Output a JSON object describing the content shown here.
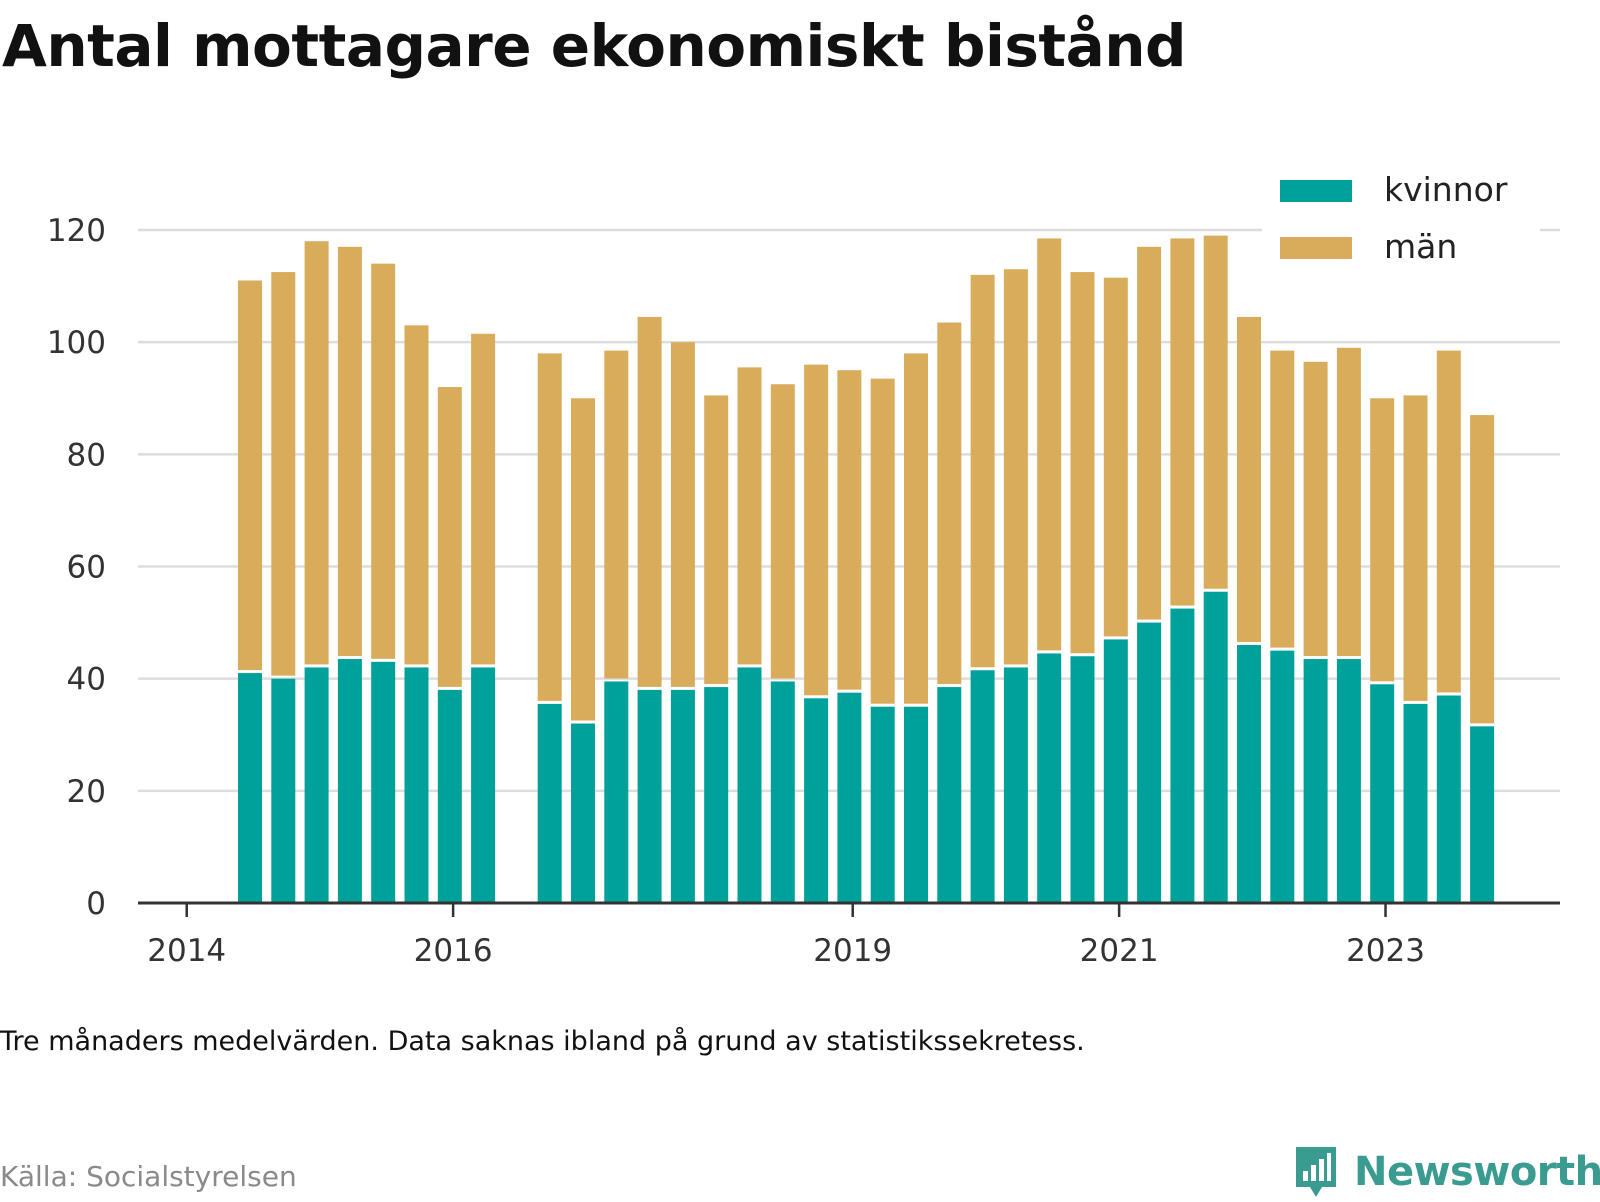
{
  "header": {
    "title": "Antal mottagare ekonomiskt bistånd"
  },
  "footer": {
    "note": "Tre månaders medelvärden. Data saknas ibland på grund av statistikssekretess.",
    "source": "Källa: Socialstyrelsen",
    "brand": "Newsworthy"
  },
  "colors": {
    "kvinnor": "#00a19a",
    "man": "#d9ac5b",
    "grid": "#dddddd",
    "axis": "#333333",
    "brand": "#3a9b90"
  },
  "chart_data": {
    "type": "bar",
    "stacked": true,
    "x_ticks": [
      {
        "label": "2014",
        "pos": -1.9
      },
      {
        "label": "2016",
        "pos": 6.1
      },
      {
        "label": "2019",
        "pos": 18.1
      },
      {
        "label": "2021",
        "pos": 26.1
      },
      {
        "label": "2023",
        "pos": 34.1
      }
    ],
    "ylim": [
      0,
      120
    ],
    "yticks": [
      0,
      20,
      40,
      60,
      80,
      100,
      120
    ],
    "grid": true,
    "legend_position": "top-right",
    "series": [
      {
        "name": "kvinnor",
        "color": "#00a19a",
        "values": [
          41,
          40,
          42,
          43.5,
          43,
          42,
          38,
          42,
          null,
          35.5,
          32,
          39.5,
          38,
          38,
          38.5,
          42,
          39.5,
          36.5,
          37.5,
          35,
          35,
          38.5,
          41.5,
          42,
          44.5,
          44,
          47,
          50,
          52.5,
          55.5,
          46,
          45,
          43.5,
          43.5,
          39,
          35.5,
          37,
          31.5
        ]
      },
      {
        "name": "män",
        "color": "#d9ac5b",
        "values": [
          70,
          72.5,
          76,
          73.5,
          71,
          61,
          54,
          59.5,
          null,
          62.5,
          58,
          59,
          66.5,
          62,
          52,
          53.5,
          53,
          59.5,
          57.5,
          58.5,
          63,
          65,
          70.5,
          71,
          74,
          68.5,
          64.5,
          67,
          66,
          63.5,
          58.5,
          53.5,
          53,
          55.5,
          51,
          55,
          61.5,
          55.5
        ]
      }
    ]
  }
}
